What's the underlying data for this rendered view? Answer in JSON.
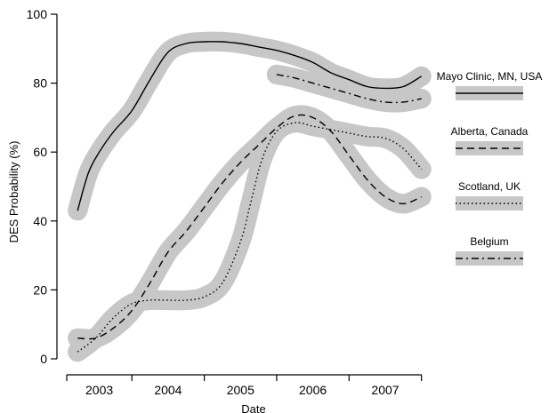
{
  "chart_data": {
    "type": "line",
    "xlabel": "Date",
    "ylabel": "DES Probability (%)",
    "ylim": [
      0,
      100
    ],
    "yticks": [
      0,
      20,
      40,
      60,
      80,
      100
    ],
    "xlim": [
      2002.6,
      2007.75
    ],
    "x_periods": [
      {
        "label": "2003",
        "start": 2002.6,
        "end": 2003.5
      },
      {
        "label": "2004",
        "start": 2003.5,
        "end": 2004.5
      },
      {
        "label": "2005",
        "start": 2004.5,
        "end": 2005.5
      },
      {
        "label": "2006",
        "start": 2005.5,
        "end": 2006.5
      },
      {
        "label": "2007",
        "start": 2006.5,
        "end": 2007.5
      }
    ],
    "grid": false,
    "legend": "right",
    "confidence_band_color": "#c7c7c7",
    "series": [
      {
        "name": "Mayo Clinic, MN, USA",
        "line_style": "solid",
        "x": [
          2002.75,
          2002.9,
          2003.05,
          2003.25,
          2003.5,
          2003.75,
          2004.0,
          2004.25,
          2004.5,
          2004.75,
          2005.0,
          2005.25,
          2005.5,
          2005.75,
          2006.0,
          2006.25,
          2006.5,
          2006.75,
          2007.0,
          2007.25,
          2007.5
        ],
        "y": [
          43,
          54,
          60,
          66,
          72,
          81,
          89,
          91.5,
          92,
          92,
          91.5,
          90.5,
          89.5,
          88,
          86,
          83,
          81,
          79,
          78.5,
          79,
          82
        ],
        "band_halfwidth": [
          10,
          7,
          4,
          3,
          2.5,
          2.5,
          2.5,
          2.5,
          2.5,
          2.5,
          2.5,
          2.5,
          2.5,
          2.5,
          2.5,
          2.5,
          2.5,
          2.5,
          2.5,
          3,
          5
        ]
      },
      {
        "name": "Alberta, Canada",
        "line_style": "dashed",
        "x": [
          2002.75,
          2003.0,
          2003.25,
          2003.5,
          2003.75,
          2004.0,
          2004.25,
          2004.5,
          2004.75,
          2005.0,
          2005.25,
          2005.5,
          2005.75,
          2006.0,
          2006.25,
          2006.5,
          2006.75,
          2007.0,
          2007.25,
          2007.5
        ],
        "y": [
          6,
          6,
          9,
          14,
          22,
          31,
          37,
          44,
          51,
          57,
          62,
          67,
          70.5,
          70,
          66,
          59,
          52,
          47,
          45,
          47
        ],
        "band_halfwidth": [
          4,
          3,
          3,
          3,
          3,
          3,
          3,
          3,
          3,
          3,
          3,
          3,
          3,
          3,
          3.5,
          4,
          4.5,
          5,
          5,
          5
        ]
      },
      {
        "name": "Scotland, UK",
        "line_style": "dotted",
        "x": [
          2002.75,
          2003.0,
          2003.25,
          2003.5,
          2003.75,
          2004.0,
          2004.25,
          2004.5,
          2004.75,
          2005.0,
          2005.15,
          2005.3,
          2005.5,
          2005.75,
          2006.0,
          2006.25,
          2006.5,
          2006.75,
          2007.0,
          2007.25,
          2007.5
        ],
        "y": [
          2,
          6,
          12,
          16,
          17,
          17,
          17,
          18,
          22,
          34,
          46,
          58,
          66,
          68.5,
          67.5,
          66.5,
          65.5,
          64.5,
          64,
          61,
          55
        ],
        "band_halfwidth": [
          3,
          3,
          3,
          3,
          3,
          3,
          3,
          3,
          3,
          3,
          3,
          3,
          3,
          3,
          3,
          3,
          3,
          3,
          3,
          3.5,
          4
        ]
      },
      {
        "name": "Belgium",
        "line_style": "dashdot",
        "x": [
          2005.5,
          2005.75,
          2006.0,
          2006.25,
          2006.5,
          2006.75,
          2007.0,
          2007.25,
          2007.5
        ],
        "y": [
          82.5,
          81.5,
          80,
          78.5,
          77,
          75.5,
          74.5,
          74.5,
          75.5
        ],
        "band_halfwidth": [
          2.5,
          2.5,
          2.5,
          2.5,
          2.5,
          2.5,
          2.5,
          2.5,
          2.5
        ]
      }
    ]
  }
}
